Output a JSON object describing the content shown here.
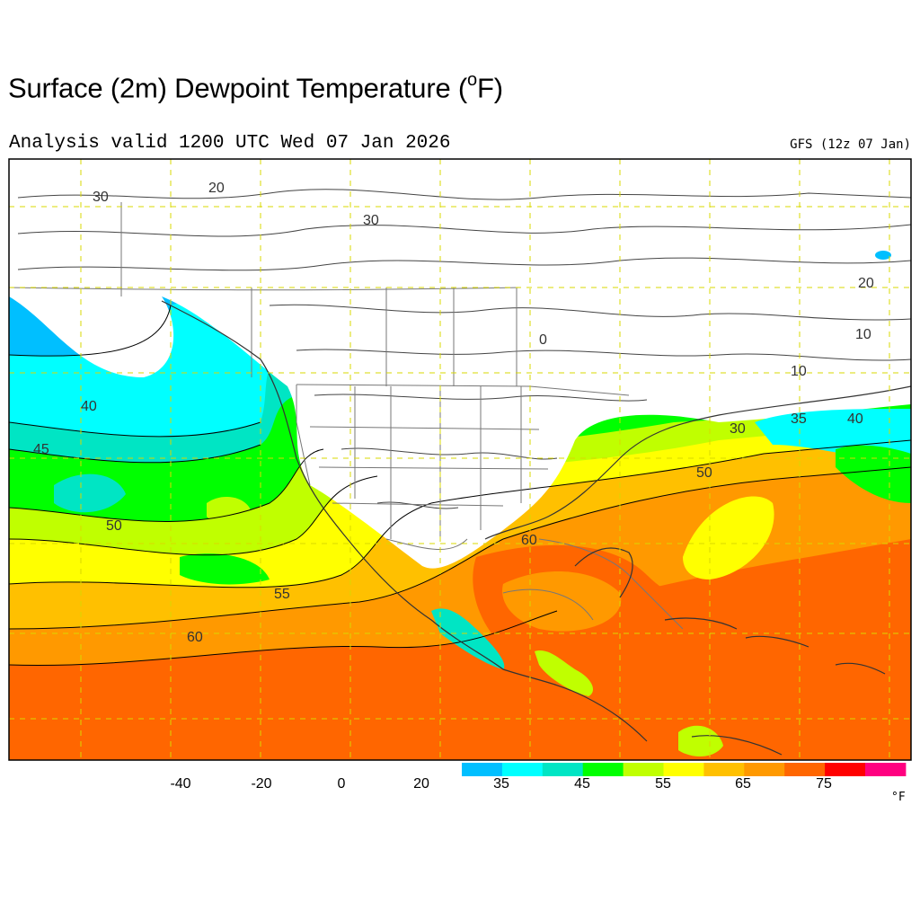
{
  "header": {
    "title": "Surface (2m) Dewpoint Temperature (",
    "title_degree": "o",
    "title_unit_close": "F)",
    "subtitle": "Analysis valid 1200 UTC Wed 07 Jan 2026",
    "model": "GFS (12z 07 Jan)"
  },
  "map": {
    "region": "North Pacific / North America / Caribbean",
    "contour_labels": [
      "30",
      "20",
      "30",
      "20",
      "10",
      "0",
      "10",
      "40",
      "45",
      "50",
      "55",
      "60",
      "35",
      "40",
      "30",
      "50",
      "60"
    ]
  },
  "colorbar": {
    "labels": [
      "-40",
      "-20",
      "0",
      "20",
      "35",
      "45",
      "55",
      "65",
      "75"
    ],
    "unit": "°F",
    "colors": [
      "#00bfff",
      "#00ffff",
      "#00e5c4",
      "#00ff00",
      "#c0ff00",
      "#ffff00",
      "#ffc000",
      "#ff9900",
      "#ff6600",
      "#ff0000",
      "#ff0080"
    ]
  }
}
